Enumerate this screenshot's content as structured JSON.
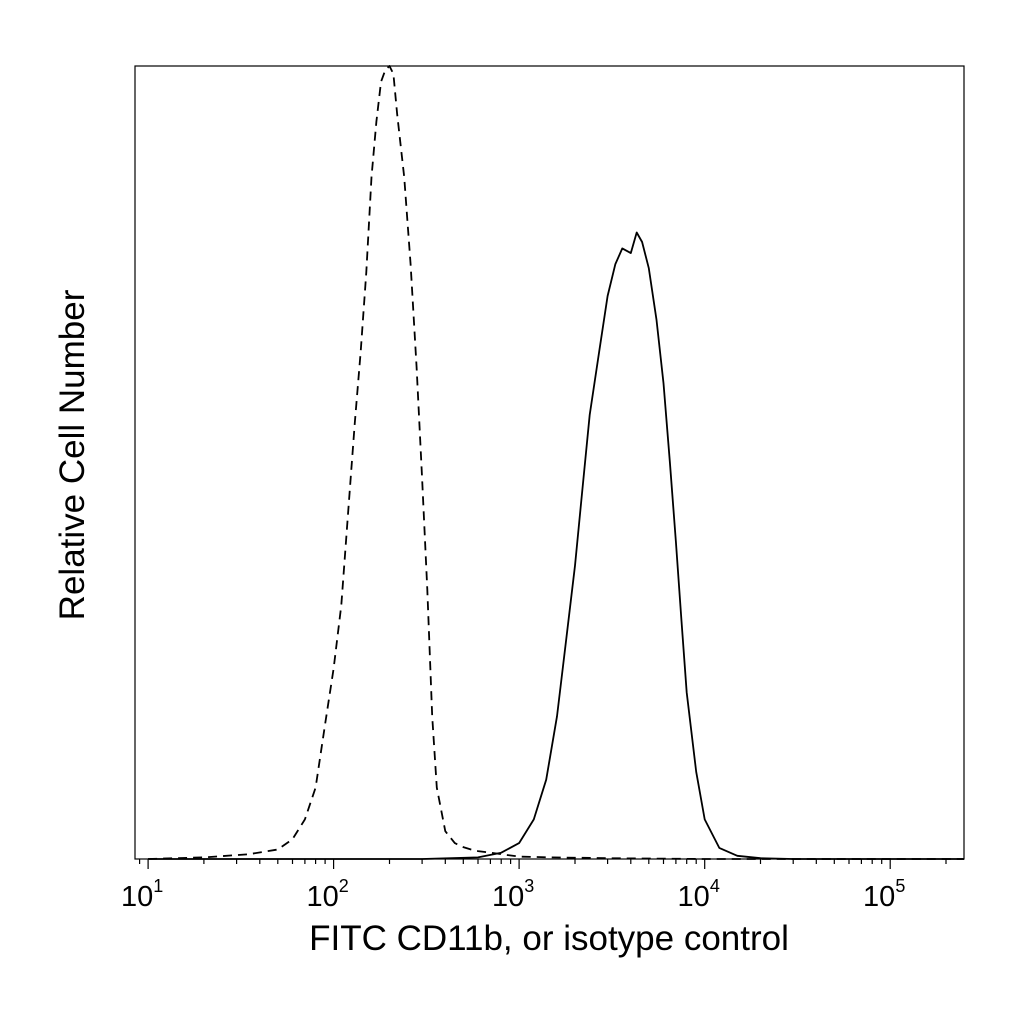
{
  "chart_data": {
    "type": "line",
    "title": "",
    "xlabel": "FITC CD11b, or isotype control",
    "ylabel": "Relative Cell Number",
    "x_scale": "log",
    "xlim": [
      8.5,
      250000
    ],
    "ylim": [
      0,
      1
    ],
    "grid": false,
    "legend": "none",
    "x_ticks": [
      {
        "base": "10",
        "exp": "1",
        "value": 10
      },
      {
        "base": "10",
        "exp": "2",
        "value": 100
      },
      {
        "base": "10",
        "exp": "3",
        "value": 1000
      },
      {
        "base": "10",
        "exp": "4",
        "value": 10000
      },
      {
        "base": "10",
        "exp": "5",
        "value": 100000
      }
    ],
    "series": [
      {
        "style": "dashed",
        "color": "#000000",
        "points": [
          [
            10,
            0.0
          ],
          [
            20,
            0.002
          ],
          [
            35,
            0.006
          ],
          [
            50,
            0.012
          ],
          [
            60,
            0.025
          ],
          [
            70,
            0.05
          ],
          [
            80,
            0.09
          ],
          [
            90,
            0.17
          ],
          [
            100,
            0.24
          ],
          [
            110,
            0.32
          ],
          [
            120,
            0.44
          ],
          [
            130,
            0.55
          ],
          [
            140,
            0.64
          ],
          [
            150,
            0.74
          ],
          [
            160,
            0.86
          ],
          [
            170,
            0.93
          ],
          [
            180,
            0.98
          ],
          [
            190,
            0.995
          ],
          [
            200,
            1.0
          ],
          [
            210,
            0.99
          ],
          [
            220,
            0.94
          ],
          [
            240,
            0.86
          ],
          [
            260,
            0.75
          ],
          [
            280,
            0.62
          ],
          [
            300,
            0.48
          ],
          [
            320,
            0.34
          ],
          [
            340,
            0.18
          ],
          [
            360,
            0.09
          ],
          [
            400,
            0.035
          ],
          [
            450,
            0.02
          ],
          [
            500,
            0.015
          ],
          [
            550,
            0.012
          ],
          [
            600,
            0.01
          ],
          [
            700,
            0.008
          ],
          [
            800,
            0.006
          ],
          [
            1000,
            0.003
          ],
          [
            1500,
            0.002
          ],
          [
            3000,
            0.001
          ],
          [
            10000,
            0.0
          ],
          [
            100000,
            0.0
          ],
          [
            250000,
            0.0
          ]
        ]
      },
      {
        "style": "solid",
        "color": "#000000",
        "points": [
          [
            10,
            0.0
          ],
          [
            300,
            0.0
          ],
          [
            600,
            0.002
          ],
          [
            800,
            0.008
          ],
          [
            1000,
            0.02
          ],
          [
            1200,
            0.05
          ],
          [
            1400,
            0.1
          ],
          [
            1600,
            0.18
          ],
          [
            1800,
            0.28
          ],
          [
            2000,
            0.37
          ],
          [
            2200,
            0.47
          ],
          [
            2400,
            0.56
          ],
          [
            2700,
            0.64
          ],
          [
            3000,
            0.71
          ],
          [
            3300,
            0.75
          ],
          [
            3600,
            0.77
          ],
          [
            4000,
            0.764
          ],
          [
            4300,
            0.79
          ],
          [
            4600,
            0.778
          ],
          [
            5000,
            0.745
          ],
          [
            5500,
            0.68
          ],
          [
            6000,
            0.6
          ],
          [
            6500,
            0.5
          ],
          [
            7000,
            0.4
          ],
          [
            7500,
            0.3
          ],
          [
            8000,
            0.21
          ],
          [
            9000,
            0.11
          ],
          [
            10000,
            0.05
          ],
          [
            12000,
            0.014
          ],
          [
            15000,
            0.004
          ],
          [
            20000,
            0.001
          ],
          [
            30000,
            0.0
          ],
          [
            100000,
            0.0
          ],
          [
            250000,
            0.0
          ]
        ]
      }
    ]
  }
}
